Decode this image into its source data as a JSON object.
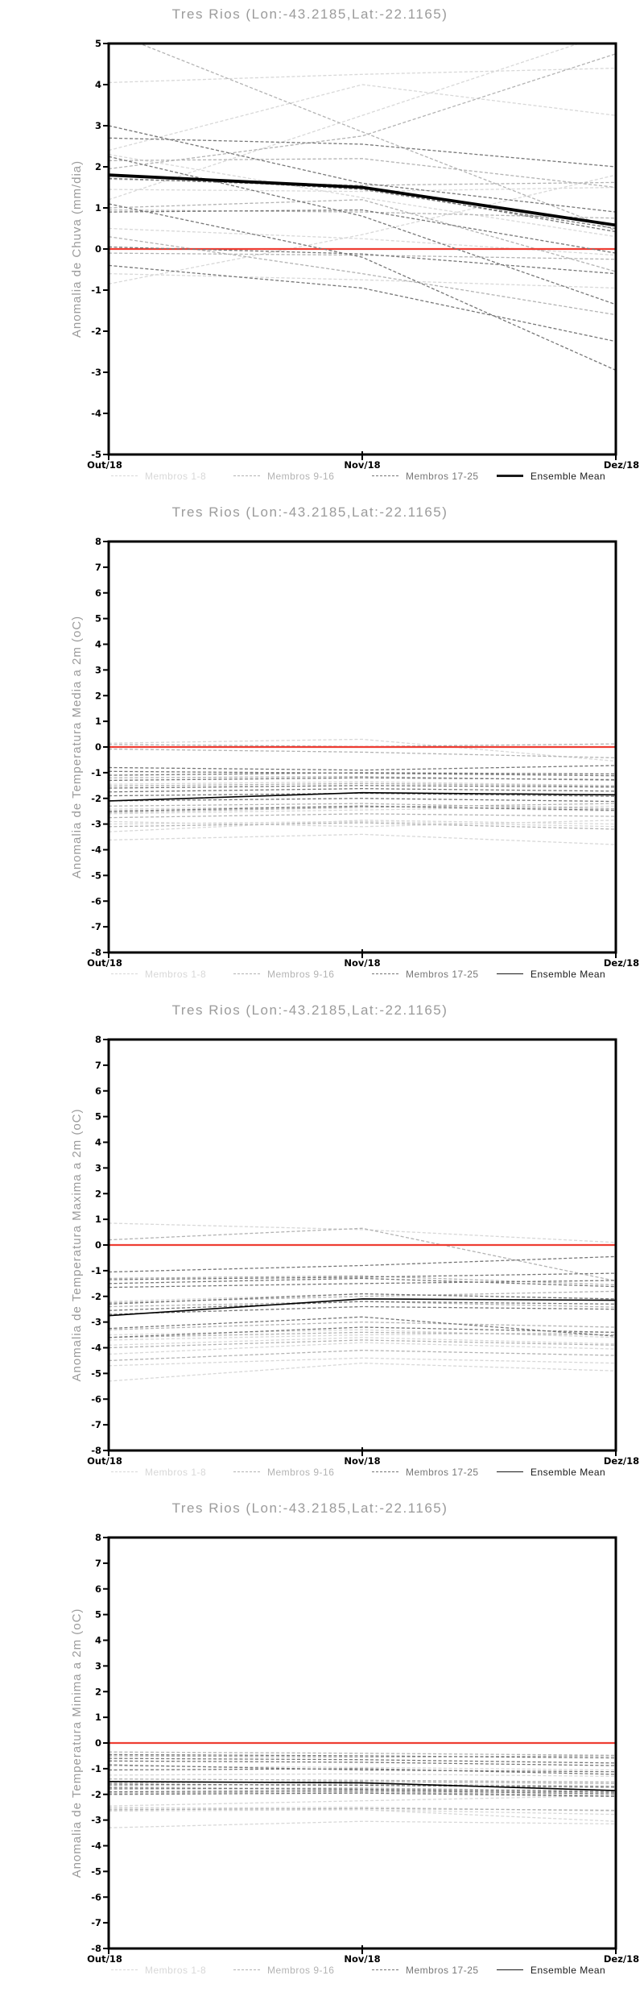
{
  "station": {
    "name": "Tres Rios",
    "lon": "-43.2185",
    "lat": "-22.1165"
  },
  "colors": {
    "background": "#ffffff",
    "title_text": "#9b9b9b",
    "axis": "#000000",
    "tick_label": "#000000",
    "zero_line": "#ee3d33",
    "ensemble_mean": "#000000",
    "membros_1_8": "#d8d8d8",
    "membros_9_16": "#b3b3b3",
    "membros_17_25": "#777777"
  },
  "legend": {
    "items": [
      {
        "label": "Membros 1-8",
        "color": "#d8d8d8",
        "style": "dashed"
      },
      {
        "label": "Membros 9-16",
        "color": "#b3b3b3",
        "style": "dashed"
      },
      {
        "label": "Membros 17-25",
        "color": "#777777",
        "style": "dashed"
      },
      {
        "label": "Ensemble Mean",
        "color": "#1a1a1a",
        "style": "solid"
      }
    ]
  },
  "chart_data": [
    {
      "type": "line",
      "title": "Tres Rios (Lon:-43.2185,Lat:-22.1165)",
      "ylabel": "Anomalia de Chuva (mm/dia)",
      "x_labels": [
        "Out/18",
        "Nov/18",
        "Dez/18"
      ],
      "ylim": [
        -5,
        5
      ],
      "yticks": [
        5,
        4,
        3,
        2,
        1,
        0,
        -1,
        -2,
        -3,
        -4,
        -5
      ],
      "zero_line": 0,
      "grid": false,
      "legend_position": "bottom",
      "mean_line_thick": true,
      "ensemble_mean": [
        1.8,
        1.5,
        0.58
      ],
      "groups": [
        {
          "name": "Membros 1-8",
          "color": "#d8d8d8",
          "series": [
            [
              4.05,
              4.25,
              4.4
            ],
            [
              2.4,
              4.0,
              3.25
            ],
            [
              1.2,
              3.25,
              5.3
            ],
            [
              1.45,
              1.4,
              1.5
            ],
            [
              0.5,
              0.25,
              -0.15
            ],
            [
              -0.6,
              -0.75,
              -0.95
            ],
            [
              2.3,
              1.25,
              0.3
            ],
            [
              -0.85,
              0.35,
              1.8
            ]
          ]
        },
        {
          "name": "Membros 9-16",
          "color": "#b3b3b3",
          "series": [
            [
              5.3,
              2.85,
              0.45
            ],
            [
              1.95,
              2.75,
              4.75
            ],
            [
              0.95,
              0.9,
              0.75
            ],
            [
              1.0,
              1.2,
              -0.55
            ],
            [
              -0.1,
              -0.15,
              -0.25
            ],
            [
              1.7,
              1.55,
              1.62
            ],
            [
              0.3,
              -0.6,
              -1.6
            ],
            [
              2.15,
              2.2,
              1.5
            ]
          ]
        },
        {
          "name": "Membros 17-25",
          "color": "#777777",
          "series": [
            [
              3.0,
              1.6,
              0.9
            ],
            [
              2.7,
              2.55,
              2.0
            ],
            [
              1.8,
              1.45,
              0.5
            ],
            [
              1.72,
              1.5,
              0.42
            ],
            [
              0.9,
              0.95,
              -0.1
            ],
            [
              -0.4,
              -0.95,
              -2.25
            ],
            [
              1.1,
              -0.2,
              -2.95
            ],
            [
              2.25,
              0.8,
              -1.35
            ],
            [
              0.05,
              -0.12,
              -0.6
            ]
          ]
        }
      ]
    },
    {
      "type": "line",
      "title": "Tres Rios (Lon:-43.2185,Lat:-22.1165)",
      "ylabel": "Anomalia de Temperatura Media a 2m (oC)",
      "x_labels": [
        "Out/18",
        "Nov/18",
        "Dez/18"
      ],
      "ylim": [
        -8,
        8
      ],
      "yticks": [
        8,
        7,
        6,
        5,
        4,
        3,
        2,
        1,
        0,
        -1,
        -2,
        -3,
        -4,
        -5,
        -6,
        -7,
        -8
      ],
      "zero_line": 0,
      "grid": false,
      "legend_position": "bottom",
      "mean_line_thick": false,
      "ensemble_mean": [
        -2.1,
        -1.78,
        -1.86
      ],
      "groups": [
        {
          "name": "Membros 1-8",
          "color": "#d8d8d8",
          "series": [
            [
              0.15,
              0.3,
              -0.55
            ],
            [
              -1.45,
              -1.35,
              -1.5
            ],
            [
              -2.42,
              -2.3,
              -2.5
            ],
            [
              -2.6,
              -2.45,
              -2.3
            ],
            [
              -3.0,
              -2.9,
              -3.1
            ],
            [
              -3.3,
              -2.85,
              -3.0
            ],
            [
              -3.62,
              -3.4,
              -3.8
            ],
            [
              -2.9,
              -3.1,
              -2.85
            ]
          ]
        },
        {
          "name": "Membros 9-16",
          "color": "#b3b3b3",
          "series": [
            [
              0.1,
              0.02,
              0.12
            ],
            [
              -0.08,
              -0.2,
              -0.42
            ],
            [
              -1.2,
              -1.15,
              -1.3
            ],
            [
              -1.52,
              -1.42,
              -1.52
            ],
            [
              -2.3,
              -2.2,
              -2.4
            ],
            [
              -2.55,
              -2.35,
              -2.2
            ],
            [
              -2.75,
              -2.6,
              -2.7
            ],
            [
              -3.1,
              -2.95,
              -3.2
            ]
          ]
        },
        {
          "name": "Membros 17-25",
          "color": "#777777",
          "series": [
            [
              -0.8,
              -0.9,
              -0.72
            ],
            [
              -0.95,
              -1.02,
              -1.12
            ],
            [
              -1.1,
              -1.0,
              -1.05
            ],
            [
              -1.3,
              -1.2,
              -1.27
            ],
            [
              -1.6,
              -1.5,
              -1.56
            ],
            [
              -1.75,
              -1.62,
              -1.72
            ],
            [
              -1.9,
              -1.8,
              -1.92
            ],
            [
              -2.1,
              -2.0,
              -2.12
            ],
            [
              -2.5,
              -2.3,
              -2.46
            ]
          ]
        }
      ]
    },
    {
      "type": "line",
      "title": "Tres Rios (Lon:-43.2185,Lat:-22.1165)",
      "ylabel": "Anomalia de Temperatura Maxima a 2m (oC)",
      "x_labels": [
        "Out/18",
        "Nov/18",
        "Dez/18"
      ],
      "ylim": [
        -8,
        8
      ],
      "yticks": [
        8,
        7,
        6,
        5,
        4,
        3,
        2,
        1,
        0,
        -1,
        -2,
        -3,
        -4,
        -5,
        -6,
        -7,
        -8
      ],
      "zero_line": 0,
      "grid": false,
      "legend_position": "bottom",
      "mean_line_thick": false,
      "ensemble_mean": [
        -2.75,
        -2.1,
        -2.15
      ],
      "groups": [
        {
          "name": "Membros 1-8",
          "color": "#d8d8d8",
          "series": [
            [
              0.85,
              0.6,
              0.1
            ],
            [
              -2.2,
              -1.9,
              -2.1
            ],
            [
              -3.5,
              -3.3,
              -3.6
            ],
            [
              -3.7,
              -3.5,
              -3.4
            ],
            [
              -3.9,
              -3.6,
              -3.85
            ],
            [
              -4.25,
              -3.8,
              -4.05
            ],
            [
              -4.7,
              -4.4,
              -4.6
            ],
            [
              -5.3,
              -4.6,
              -4.9
            ]
          ]
        },
        {
          "name": "Membros 9-16",
          "color": "#b3b3b3",
          "series": [
            [
              0.2,
              0.65,
              -1.4
            ],
            [
              -1.3,
              -1.2,
              -1.55
            ],
            [
              -2.25,
              -2.0,
              -1.8
            ],
            [
              -2.4,
              -2.2,
              -2.42
            ],
            [
              -3.3,
              -3.0,
              -3.2
            ],
            [
              -3.6,
              -3.4,
              -3.5
            ],
            [
              -4.0,
              -3.7,
              -3.9
            ],
            [
              -4.5,
              -4.1,
              -4.3
            ]
          ]
        },
        {
          "name": "Membros 17-25",
          "color": "#777777",
          "series": [
            [
              -1.05,
              -0.8,
              -0.45
            ],
            [
              -1.35,
              -1.25,
              -1.1
            ],
            [
              -1.5,
              -1.3,
              -1.62
            ],
            [
              -1.65,
              -1.5,
              -1.38
            ],
            [
              -2.3,
              -1.9,
              -2.1
            ],
            [
              -2.55,
              -2.2,
              -2.3
            ],
            [
              -2.7,
              -2.4,
              -2.5
            ],
            [
              -3.25,
              -2.8,
              -3.55
            ],
            [
              -3.6,
              -3.2,
              -3.4
            ]
          ]
        }
      ]
    },
    {
      "type": "line",
      "title": "Tres Rios (Lon:-43.2185,Lat:-22.1165)",
      "ylabel": "Anomalia de Temperatura Minima a 2m (oC)",
      "x_labels": [
        "Out/18",
        "Nov/18",
        "Dez/18"
      ],
      "ylim": [
        -8,
        8
      ],
      "yticks": [
        8,
        7,
        6,
        5,
        4,
        3,
        2,
        1,
        0,
        -1,
        -2,
        -3,
        -4,
        -5,
        -6,
        -7,
        -8
      ],
      "zero_line": 0,
      "grid": false,
      "legend_position": "bottom",
      "mean_line_thick": false,
      "ensemble_mean": [
        -1.5,
        -1.55,
        -1.85
      ],
      "groups": [
        {
          "name": "Membros 1-8",
          "color": "#d8d8d8",
          "series": [
            [
              -1.25,
              -1.2,
              -1.3
            ],
            [
              -2.45,
              -2.25,
              -2.05
            ],
            [
              -2.55,
              -2.5,
              -2.65
            ],
            [
              -2.65,
              -2.6,
              -2.78
            ],
            [
              -3.3,
              -3.05,
              -3.15
            ],
            [
              -2.5,
              -2.6,
              -3.05
            ],
            [
              -0.9,
              -0.95,
              -1.05
            ],
            [
              -1.7,
              -1.78,
              -1.85
            ]
          ]
        },
        {
          "name": "Membros 9-16",
          "color": "#b3b3b3",
          "series": [
            [
              -0.35,
              -0.4,
              -0.48
            ],
            [
              -0.5,
              -0.55,
              -0.5
            ],
            [
              -1.55,
              -1.5,
              -1.58
            ],
            [
              -1.65,
              -1.6,
              -1.68
            ],
            [
              -1.8,
              -1.75,
              -1.88
            ],
            [
              -1.95,
              -1.9,
              -2.05
            ],
            [
              -2.6,
              -2.55,
              -2.62
            ],
            [
              -1.4,
              -1.45,
              -1.52
            ]
          ]
        },
        {
          "name": "Membros 17-25",
          "color": "#777777",
          "series": [
            [
              -0.45,
              -0.5,
              -0.58
            ],
            [
              -0.6,
              -0.65,
              -0.78
            ],
            [
              -0.7,
              -0.75,
              -0.88
            ],
            [
              -1.05,
              -1.0,
              -1.22
            ],
            [
              -0.85,
              -1.05,
              -1.12
            ],
            [
              -1.6,
              -1.65,
              -1.72
            ],
            [
              -1.75,
              -1.8,
              -1.92
            ],
            [
              -1.9,
              -1.85,
              -1.98
            ],
            [
              -2.0,
              -1.95,
              -2.08
            ]
          ]
        }
      ]
    }
  ]
}
